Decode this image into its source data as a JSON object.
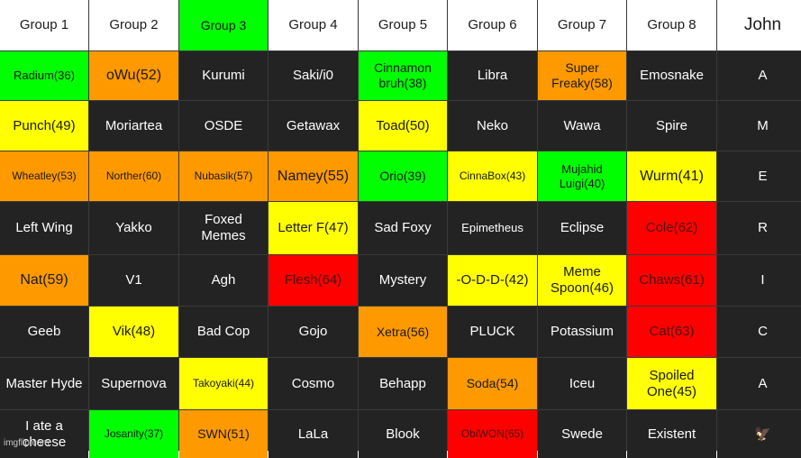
{
  "palette": {
    "green": "#00ff00",
    "orange": "#ff9900",
    "yellow": "#ffff00",
    "red": "#ff0000",
    "dark": "#232323",
    "header": "#ffffff"
  },
  "headers": [
    "Group 1",
    "Group 2",
    "Group 3",
    "Group 4",
    "Group 5",
    "Group 6",
    "Group 7",
    "Group 8",
    "John"
  ],
  "rows": [
    [
      {
        "text": "Radium(36)",
        "color": "green"
      },
      {
        "text": "oWu(52)",
        "color": "orange"
      },
      {
        "text": "Kurumi",
        "color": "dark"
      },
      {
        "text": "Saki/i0",
        "color": "dark"
      },
      {
        "text": "Cinnamon bruh(38)",
        "color": "green"
      },
      {
        "text": "Libra",
        "color": "dark"
      },
      {
        "text": "Super Freaky(58)",
        "color": "orange"
      },
      {
        "text": "Emosnake",
        "color": "dark"
      },
      {
        "text": "A",
        "color": "dark"
      }
    ],
    [
      {
        "text": "Punch(49)",
        "color": "yellow"
      },
      {
        "text": "Moriartea",
        "color": "dark"
      },
      {
        "text": "OSDE",
        "color": "dark"
      },
      {
        "text": "Getawax",
        "color": "dark"
      },
      {
        "text": "Toad(50)",
        "color": "yellow"
      },
      {
        "text": "Neko",
        "color": "dark"
      },
      {
        "text": "Wawa",
        "color": "dark"
      },
      {
        "text": "Spire",
        "color": "dark"
      },
      {
        "text": "M",
        "color": "dark"
      }
    ],
    [
      {
        "text": "Wheatley(53)",
        "color": "orange"
      },
      {
        "text": "Norther(60)",
        "color": "orange"
      },
      {
        "text": "Nubasik(57)",
        "color": "orange"
      },
      {
        "text": "Namey(55)",
        "color": "orange"
      },
      {
        "text": "Orio(39)",
        "color": "green"
      },
      {
        "text": "CinnaBox(43)",
        "color": "yellow"
      },
      {
        "text": "Mujahid Luigi(40)",
        "color": "green"
      },
      {
        "text": "Wurm(41)",
        "color": "yellow"
      },
      {
        "text": "E",
        "color": "dark"
      }
    ],
    [
      {
        "text": "Left Wing",
        "color": "dark"
      },
      {
        "text": "Yakko",
        "color": "dark"
      },
      {
        "text": "Foxed Memes",
        "color": "dark"
      },
      {
        "text": "Letter F(47)",
        "color": "yellow"
      },
      {
        "text": "Sad Foxy",
        "color": "dark"
      },
      {
        "text": "Epimetheus",
        "color": "dark"
      },
      {
        "text": "Eclipse",
        "color": "dark"
      },
      {
        "text": "Cole(62)",
        "color": "red"
      },
      {
        "text": "R",
        "color": "dark"
      }
    ],
    [
      {
        "text": "Nat(59)",
        "color": "orange"
      },
      {
        "text": "V1",
        "color": "dark"
      },
      {
        "text": "Agh",
        "color": "dark"
      },
      {
        "text": "Flesh(64)",
        "color": "red"
      },
      {
        "text": "Mystery",
        "color": "dark"
      },
      {
        "text": "-O-D-D-(42)",
        "color": "yellow"
      },
      {
        "text": "Meme Spoon(46)",
        "color": "yellow"
      },
      {
        "text": "Chaws(61)",
        "color": "red"
      },
      {
        "text": "I",
        "color": "dark"
      }
    ],
    [
      {
        "text": "Geeb",
        "color": "dark"
      },
      {
        "text": "Vik(48)",
        "color": "yellow"
      },
      {
        "text": "Bad Cop",
        "color": "dark"
      },
      {
        "text": "Gojo",
        "color": "dark"
      },
      {
        "text": "Xetra(56)",
        "color": "orange"
      },
      {
        "text": "PLUCK",
        "color": "dark"
      },
      {
        "text": "Potassium",
        "color": "dark"
      },
      {
        "text": "Cat(63)",
        "color": "red"
      },
      {
        "text": "C",
        "color": "dark"
      }
    ],
    [
      {
        "text": "Master Hyde",
        "color": "dark"
      },
      {
        "text": "Supernova",
        "color": "dark"
      },
      {
        "text": "Takoyaki(44)",
        "color": "yellow"
      },
      {
        "text": "Cosmo",
        "color": "dark"
      },
      {
        "text": "Behapp",
        "color": "dark"
      },
      {
        "text": "Soda(54)",
        "color": "orange"
      },
      {
        "text": "Iceu",
        "color": "dark"
      },
      {
        "text": "Spoiled One(45)",
        "color": "yellow"
      },
      {
        "text": "A",
        "color": "dark"
      }
    ],
    [
      {
        "text": "I ate a cheese",
        "color": "dark"
      },
      {
        "text": "Josanity(37)",
        "color": "green"
      },
      {
        "text": "SWN(51)",
        "color": "orange"
      },
      {
        "text": "LaLa",
        "color": "dark"
      },
      {
        "text": "Blook",
        "color": "dark"
      },
      {
        "text": "ObiWON(65)",
        "color": "red"
      },
      {
        "text": "Swede",
        "color": "dark"
      },
      {
        "text": "Existent",
        "color": "dark"
      },
      {
        "text": "🦅",
        "color": "dark",
        "icon": "eagle-icon"
      }
    ]
  ],
  "watermark": "imgflip.com"
}
